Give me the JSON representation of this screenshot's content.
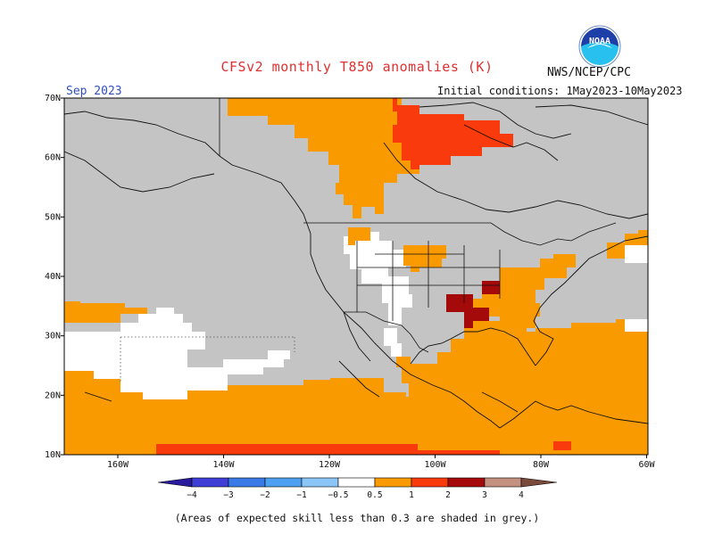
{
  "header": {
    "title": "CFSv2 monthly T850 anomalies (K)",
    "agency": "NWS/NCEP/CPC",
    "logo_text": "NOAA",
    "valid_month": "Sep 2023",
    "initial_conditions": "Initial conditions: 1May2023-10May2023"
  },
  "map": {
    "lat_labels": [
      "70N",
      "60N",
      "50N",
      "40N",
      "30N",
      "20N",
      "10N"
    ],
    "lon_labels": [
      "160W",
      "140W",
      "120W",
      "100W",
      "80W",
      "60W"
    ],
    "colors": {
      "no_skill": "#c4c4c4",
      "neutral": "#ffffff",
      "warm_0_5_1": "#f99b00",
      "warm_1_2": "#f83a0c",
      "warm_2_3": "#a50a0a",
      "coast": "#111111"
    }
  },
  "legend": {
    "labels": [
      "−4",
      "−3",
      "−2",
      "−1",
      "−0.5",
      "0.5",
      "1",
      "2",
      "3",
      "4"
    ],
    "colors": [
      "#2a1a9c",
      "#3f3fd6",
      "#3a7ae6",
      "#4ea0f0",
      "#8cc6f8",
      "#ffffff",
      "#f99b00",
      "#f83a0c",
      "#a50a0a",
      "#c49080",
      "#7a4a3a"
    ]
  },
  "footnote": "(Areas of expected skill less than 0.3 are shaded in grey.)"
}
